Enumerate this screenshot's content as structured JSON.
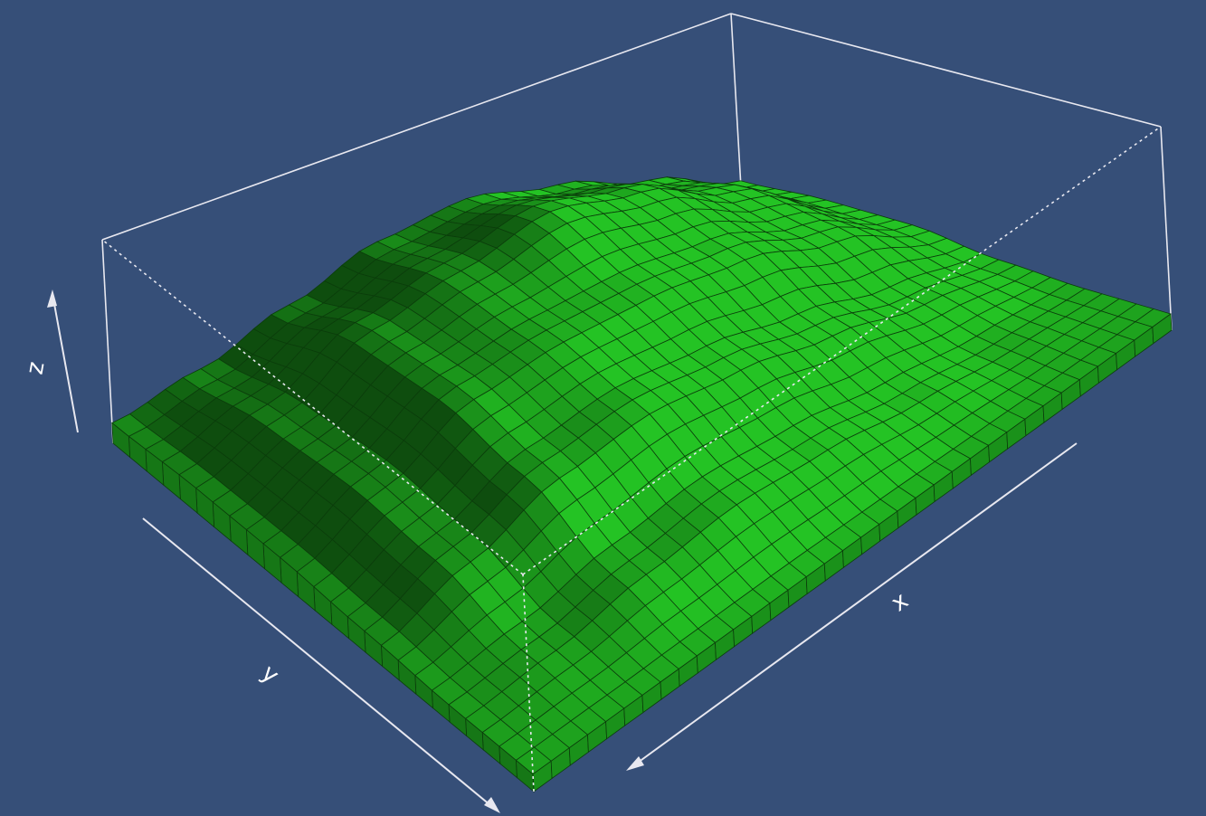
{
  "chart_data": {
    "type": "surface",
    "x_label": "x",
    "y_label": "y",
    "z_label": "z",
    "color": "#1faa1f",
    "zlim": [
      0,
      1
    ],
    "z": [
      [
        0.08,
        0.08,
        0.08,
        0.08,
        0.08,
        0.08,
        0.08,
        0.08
      ],
      [
        0.08,
        0.12,
        0.2,
        0.25,
        0.22,
        0.15,
        0.1,
        0.08
      ],
      [
        0.1,
        0.25,
        0.4,
        0.45,
        0.4,
        0.3,
        0.18,
        0.1
      ],
      [
        0.12,
        0.3,
        0.5,
        0.55,
        0.55,
        0.5,
        0.35,
        0.15
      ],
      [
        0.12,
        0.28,
        0.5,
        0.6,
        0.7,
        0.6,
        0.4,
        0.15
      ],
      [
        0.1,
        0.2,
        0.35,
        0.5,
        0.55,
        0.45,
        0.3,
        0.12
      ]
    ]
  }
}
